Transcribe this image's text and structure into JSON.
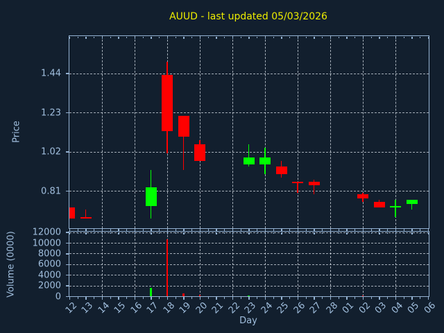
{
  "chart_data": {
    "type": "candlestick",
    "title": "AUUD - last updated 05/03/2026",
    "xlabel": "Day",
    "price_ylabel": "Price",
    "volume_ylabel": "Volume (0000)",
    "categories": [
      "12",
      "13",
      "14",
      "15",
      "16",
      "17",
      "18",
      "19",
      "20",
      "21",
      "22",
      "23",
      "24",
      "25",
      "26",
      "27",
      "28",
      "01",
      "02",
      "03",
      "04",
      "05",
      "06"
    ],
    "price_ticks": [
      0.81,
      1.02,
      1.23,
      1.44
    ],
    "price_ylim": [
      0.61,
      1.64
    ],
    "volume_ticks": [
      0,
      2000,
      4000,
      6000,
      8000,
      10000,
      12000
    ],
    "volume_ylim": [
      0,
      12330
    ],
    "grid_day_indices": [
      0,
      2,
      4,
      6,
      8,
      10,
      12,
      14,
      16,
      18,
      20,
      22
    ],
    "grid": "dashed",
    "legend": "none",
    "colors": {
      "up": "#00ff00",
      "down": "#ff0000",
      "title": "#ecec00",
      "label": "#a0bedd",
      "spine": "#94b2d2",
      "grid": "rgba(214,222,230,0.75)",
      "background": "#121f2e"
    },
    "candles": [
      {
        "day": "12",
        "open": 0.72,
        "high": 0.72,
        "low": 0.66,
        "close": 0.66,
        "volume": 50
      },
      {
        "day": "13",
        "open": 0.67,
        "high": 0.71,
        "low": 0.66,
        "close": 0.66,
        "volume": 30
      },
      {
        "day": "17",
        "open": 0.73,
        "high": 0.92,
        "low": 0.66,
        "close": 0.83,
        "volume": 1500
      },
      {
        "day": "18",
        "open": 1.43,
        "high": 1.5,
        "low": 1.01,
        "close": 1.13,
        "volume": 10700
      },
      {
        "day": "19",
        "open": 1.21,
        "high": 1.21,
        "low": 0.92,
        "close": 1.1,
        "volume": 520
      },
      {
        "day": "20",
        "open": 1.06,
        "high": 1.08,
        "low": 0.97,
        "close": 0.97,
        "volume": 200
      },
      {
        "day": "23",
        "open": 0.95,
        "high": 1.06,
        "low": 0.94,
        "close": 0.99,
        "volume": 80
      },
      {
        "day": "24",
        "open": 0.95,
        "high": 1.04,
        "low": 0.9,
        "close": 0.99,
        "volume": 60
      },
      {
        "day": "25",
        "open": 0.94,
        "high": 0.97,
        "low": 0.88,
        "close": 0.9,
        "volume": 50
      },
      {
        "day": "26",
        "open": 0.86,
        "high": 0.86,
        "low": 0.8,
        "close": 0.85,
        "volume": 40
      },
      {
        "day": "27",
        "open": 0.86,
        "high": 0.87,
        "low": 0.79,
        "close": 0.84,
        "volume": 30
      },
      {
        "day": "02",
        "open": 0.79,
        "high": 0.8,
        "low": 0.75,
        "close": 0.77,
        "volume": 90
      },
      {
        "day": "03",
        "open": 0.75,
        "high": 0.76,
        "low": 0.72,
        "close": 0.72,
        "volume": 50
      },
      {
        "day": "04",
        "open": 0.73,
        "high": 0.76,
        "low": 0.67,
        "close": 0.73,
        "volume": 40
      },
      {
        "day": "05",
        "open": 0.74,
        "high": 0.76,
        "low": 0.71,
        "close": 0.76,
        "volume": 50
      }
    ]
  }
}
